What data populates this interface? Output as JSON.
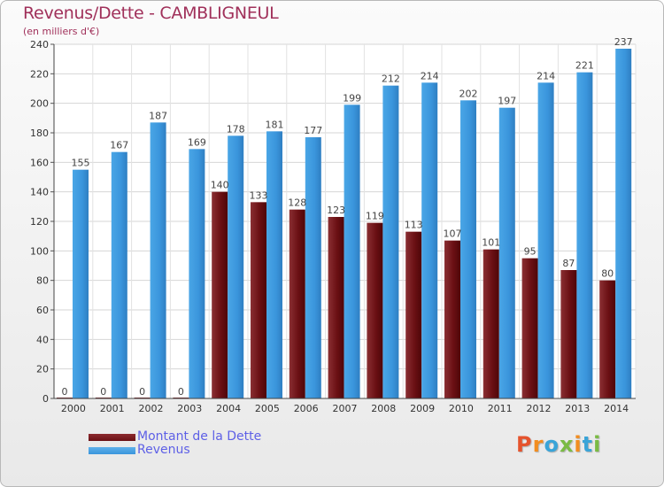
{
  "title": "Revenus/Dette - CAMBLIGNEUL",
  "subtitle": "(en milliers d'€)",
  "legend": [
    {
      "label": "Montant de la Dette",
      "color": "#6b1014"
    },
    {
      "label": "Revenus",
      "color": "#3a95dc"
    }
  ],
  "logo": {
    "text": "Proxiti",
    "letter_colors": [
      "#e5532d",
      "#f28d1f",
      "#39a4d8",
      "#7abb43",
      "#f28d1f",
      "#39a4d8",
      "#7abb43"
    ]
  },
  "chart_data": {
    "type": "bar",
    "categories": [
      "2000",
      "2001",
      "2002",
      "2003",
      "2004",
      "2005",
      "2006",
      "2007",
      "2008",
      "2009",
      "2010",
      "2011",
      "2012",
      "2013",
      "2014"
    ],
    "series": [
      {
        "name": "Montant de la Dette",
        "values": [
          0,
          0,
          0,
          0,
          140,
          133,
          128,
          123,
          119,
          113,
          107,
          101,
          95,
          87,
          80
        ],
        "color": "#6b1014"
      },
      {
        "name": "Revenus",
        "values": [
          155,
          167,
          187,
          169,
          178,
          181,
          177,
          199,
          212,
          214,
          202,
          197,
          214,
          221,
          237
        ],
        "color": "#3a95dc"
      }
    ],
    "ylim": [
      0,
      240
    ],
    "yticks": [
      0,
      20,
      40,
      60,
      80,
      100,
      120,
      140,
      160,
      180,
      200,
      220,
      240
    ],
    "grid": true,
    "legend_position": "bottom-left"
  }
}
